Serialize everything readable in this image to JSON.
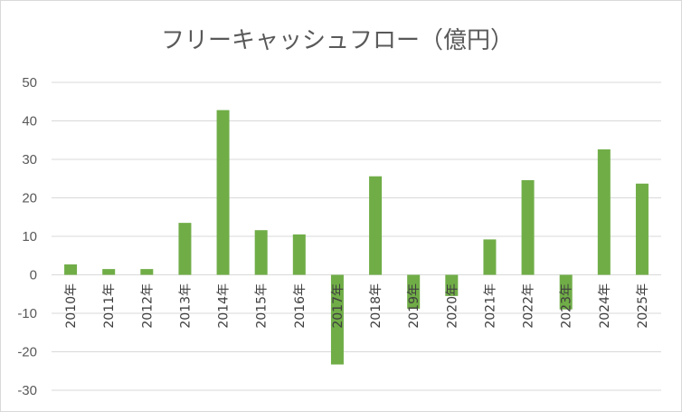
{
  "chart_data": {
    "type": "bar",
    "title": "フリーキャッシュフロー（億円）",
    "xlabel": "",
    "ylabel": "",
    "categories": [
      "2010年",
      "2011年",
      "2012年",
      "2013年",
      "2014年",
      "2015年",
      "2016年",
      "2017年",
      "2018年",
      "2019年",
      "2020年",
      "2021年",
      "2022年",
      "2023年",
      "2024年",
      "2025年"
    ],
    "series": [
      {
        "values": [
          2.7,
          1.5,
          1.5,
          13.5,
          42.8,
          11.6,
          10.5,
          -23.3,
          25.6,
          -8.8,
          -5.5,
          9.2,
          24.6,
          -9.0,
          32.6,
          23.7
        ]
      }
    ],
    "ylim": [
      -30,
      50
    ],
    "yticks": [
      50,
      40,
      30,
      20,
      10,
      0,
      -10,
      -20,
      -30
    ],
    "grid": true,
    "legend": "none",
    "bar_color": "#70ad47"
  }
}
